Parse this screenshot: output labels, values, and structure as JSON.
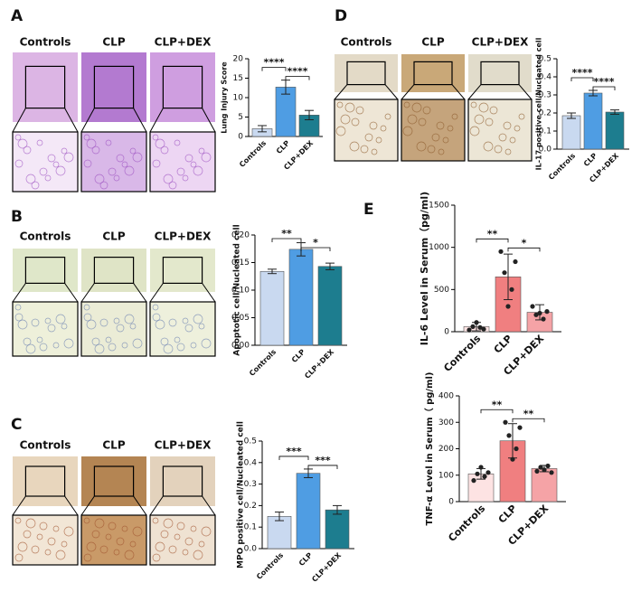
{
  "chart_data": [
    {
      "type": "bar",
      "panel": "A",
      "image_labels": [
        "Controls",
        "CLP",
        "CLP+DEX"
      ],
      "ylabel": "Lung Injury Score",
      "categories": [
        "Controls",
        "CLP",
        "CLP+DEX"
      ],
      "values": [
        2,
        12.7,
        5.5
      ],
      "errors": [
        0.8,
        1.8,
        1.2
      ],
      "colors": [
        "#c9d9f0",
        "#4f9de3",
        "#1d7d8f"
      ],
      "ylim": [
        0,
        20
      ],
      "yticks": [
        0,
        5,
        10,
        15,
        20
      ],
      "significance_labels": [
        "****",
        "****"
      ]
    },
    {
      "type": "bar",
      "panel": "B",
      "image_labels": [
        "Controls",
        "CLP",
        "CLP+DEX"
      ],
      "ylabel": "Apoptotic cell/Nucleated cell",
      "categories": [
        "Controls",
        "CLP",
        "CLP+DEX"
      ],
      "values": [
        0.134,
        0.174,
        0.143
      ],
      "errors": [
        0.004,
        0.012,
        0.006
      ],
      "colors": [
        "#c9d9f0",
        "#4f9de3",
        "#1d7d8f"
      ],
      "ylim": [
        0,
        0.2
      ],
      "yticks": [
        {
          "value": 0,
          "label": "0.00"
        },
        {
          "value": 0.05,
          "label": "0.05"
        },
        {
          "value": 0.1,
          "label": "0.10"
        },
        {
          "value": 0.15,
          "label": "0.15"
        },
        {
          "value": 0.2,
          "label": "0.20"
        }
      ],
      "significance_labels": [
        "**",
        "*"
      ]
    },
    {
      "type": "bar",
      "panel": "C",
      "image_labels": [
        "Controls",
        "CLP",
        "CLP+DEX"
      ],
      "ylabel": "MPO positive cell/Nucleated cell",
      "categories": [
        "Controls",
        "CLP",
        "CLP+DEX"
      ],
      "values": [
        0.15,
        0.35,
        0.18
      ],
      "errors": [
        0.02,
        0.02,
        0.02
      ],
      "colors": [
        "#c9d9f0",
        "#4f9de3",
        "#1d7d8f"
      ],
      "ylim": [
        0,
        0.5
      ],
      "yticks": [
        {
          "value": 0,
          "label": "0.0"
        },
        {
          "value": 0.1,
          "label": "0.1"
        },
        {
          "value": 0.2,
          "label": "0.2"
        },
        {
          "value": 0.3,
          "label": "0.3"
        },
        {
          "value": 0.4,
          "label": "0.4"
        },
        {
          "value": 0.5,
          "label": "0.5"
        }
      ],
      "significance_labels": [
        "***",
        "***"
      ]
    },
    {
      "type": "bar",
      "panel": "D",
      "image_labels": [
        "Controls",
        "CLP",
        "CLP+DEX"
      ],
      "ylabel": "IL-17 positive cell/Nucleated cell",
      "categories": [
        "Controls",
        "CLP",
        "CLP+DEX"
      ],
      "values": [
        0.185,
        0.31,
        0.205
      ],
      "errors": [
        0.015,
        0.015,
        0.012
      ],
      "colors": [
        "#c9d9f0",
        "#4f9de3",
        "#1d7d8f"
      ],
      "ylim": [
        0,
        0.5
      ],
      "yticks": [
        {
          "value": 0,
          "label": "0.0"
        },
        {
          "value": 0.1,
          "label": "0.1"
        },
        {
          "value": 0.2,
          "label": "0.2"
        },
        {
          "value": 0.3,
          "label": "0.3"
        },
        {
          "value": 0.4,
          "label": "0.4"
        },
        {
          "value": 0.5,
          "label": "0.5"
        }
      ],
      "significance_labels": [
        "****",
        "****"
      ]
    },
    {
      "type": "bar",
      "panel": "E",
      "ylabel": "IL-6 Level in Serum（pg/ml)",
      "categories": [
        "Controls",
        "CLP",
        "CLP+DEX"
      ],
      "values": [
        60,
        650,
        230
      ],
      "errors": [
        50,
        270,
        90
      ],
      "points": [
        [
          20,
          60,
          110,
          50,
          30
        ],
        [
          950,
          700,
          300,
          500,
          830
        ],
        [
          300,
          200,
          220,
          150,
          240
        ]
      ],
      "colors": [
        "#fde3e3",
        "#f07f80",
        "#f5a3a6"
      ],
      "ylim": [
        0,
        1500
      ],
      "yticks": [
        0,
        500,
        1000,
        1500
      ],
      "significance_labels": [
        "**",
        "*"
      ]
    },
    {
      "type": "bar",
      "ylabel": "TNF-α Level in Serum（ pg/ml)",
      "categories": [
        "Controls",
        "CLP",
        "CLP+DEX"
      ],
      "values": [
        105,
        230,
        125
      ],
      "errors": [
        20,
        65,
        12
      ],
      "points": [
        [
          80,
          105,
          130,
          95,
          110
        ],
        [
          300,
          250,
          160,
          200,
          280
        ],
        [
          115,
          130,
          120,
          135,
          110
        ]
      ],
      "colors": [
        "#fde3e3",
        "#f07f80",
        "#f5a3a6"
      ],
      "ylim": [
        0,
        400
      ],
      "yticks": [
        0,
        100,
        200,
        300,
        400
      ],
      "significance_labels": [
        "**",
        "**"
      ]
    }
  ]
}
